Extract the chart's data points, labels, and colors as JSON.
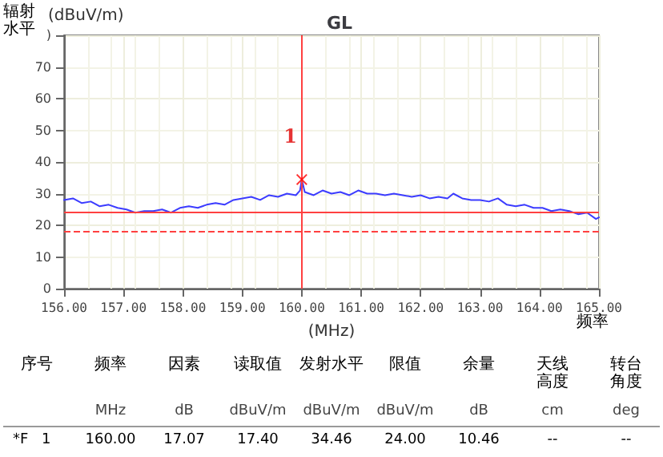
{
  "chart_data": {
    "type": "line",
    "title": "GL",
    "ylabel": "辐射水平",
    "xlabel": "(MHz)",
    "xlim": [
      156,
      165
    ],
    "xticks": [
      {
        "value": 156,
        "label": "156.00"
      },
      {
        "value": 157,
        "label": "157.00"
      },
      {
        "value": 158,
        "label": "158.00"
      },
      {
        "value": 159,
        "label": "159.00"
      },
      {
        "value": 160,
        "label": "160.00"
      },
      {
        "value": 161,
        "label": "161.00"
      },
      {
        "value": 162,
        "label": "162.00"
      },
      {
        "value": 163,
        "label": "163.00"
      },
      {
        "value": 164,
        "label": "164.00"
      },
      {
        "value": 165,
        "label": "165.00"
      }
    ],
    "ylim": [
      0,
      80
    ],
    "yticks": [
      0,
      10,
      20,
      30,
      40,
      50,
      60,
      70,
      {
        "value": 80,
        "label": ")"
      }
    ],
    "grid": true,
    "marker": "none",
    "line_style": "solid",
    "series": [
      {
        "color": "#3c3cff",
        "x": [
          156,
          156.15,
          156.3,
          156.45,
          156.6,
          156.75,
          156.9,
          157.05,
          157.2,
          157.35,
          157.5,
          157.65,
          157.8,
          157.95,
          158.1,
          158.25,
          158.4,
          158.55,
          158.7,
          158.85,
          159,
          159.15,
          159.3,
          159.45,
          159.6,
          159.75,
          159.9,
          159.97,
          160,
          160.05,
          160.2,
          160.35,
          160.5,
          160.65,
          160.8,
          160.95,
          161.1,
          161.25,
          161.4,
          161.55,
          161.7,
          161.85,
          162,
          162.15,
          162.3,
          162.45,
          162.55,
          162.7,
          162.85,
          163,
          163.15,
          163.3,
          163.45,
          163.6,
          163.75,
          163.9,
          164.05,
          164.2,
          164.35,
          164.5,
          164.65,
          164.8,
          164.95,
          165
        ],
        "values": [
          28,
          28.5,
          27,
          27.5,
          26,
          26.5,
          25.5,
          25,
          24,
          24.5,
          24.5,
          25,
          24,
          25.5,
          26,
          25.5,
          26.5,
          27,
          26.5,
          28,
          28.5,
          29,
          28,
          29.5,
          29,
          30,
          29.5,
          31,
          34.46,
          30.5,
          29.5,
          31,
          30,
          30.5,
          29.5,
          31,
          30,
          30,
          29.5,
          30,
          29.5,
          29,
          29.5,
          28.5,
          29,
          28.5,
          30,
          28.5,
          28,
          28,
          27.5,
          28.5,
          26.5,
          26,
          26.5,
          25.5,
          25.5,
          24.5,
          25,
          24.5,
          23.5,
          24,
          22,
          22.5
        ]
      },
      {
        "type": "scatter",
        "color": "#ff0000",
        "marker": "cross",
        "x": [
          160
        ],
        "values": [
          34.46
        ]
      }
    ],
    "ref_lines": [
      {
        "axis": "y",
        "value": 24,
        "color": "#ff4040",
        "line_style": "solid"
      },
      {
        "axis": "y",
        "value": 18,
        "color": "#ff4040",
        "line_style": "dashed"
      },
      {
        "axis": "x",
        "value": 160,
        "color": "#ff4040",
        "line_style": "solid"
      }
    ],
    "annotations": [
      {
        "text": "1",
        "x": 160,
        "y": 48
      },
      "(dBuV/m)",
      "频率",
      "序号",
      "频率",
      "因素",
      "读取值",
      "发射水平",
      "限值",
      "余量",
      "天线高度",
      "转台角度",
      "MHz",
      "dB",
      "dBuV/m",
      "dBuV/m",
      "dBuV/m",
      "dB",
      "cm",
      "deg",
      "*F",
      "1",
      "160.00",
      "17.07",
      "17.40",
      "34.46",
      "24.00",
      "10.46",
      "--",
      "--"
    ]
  }
}
